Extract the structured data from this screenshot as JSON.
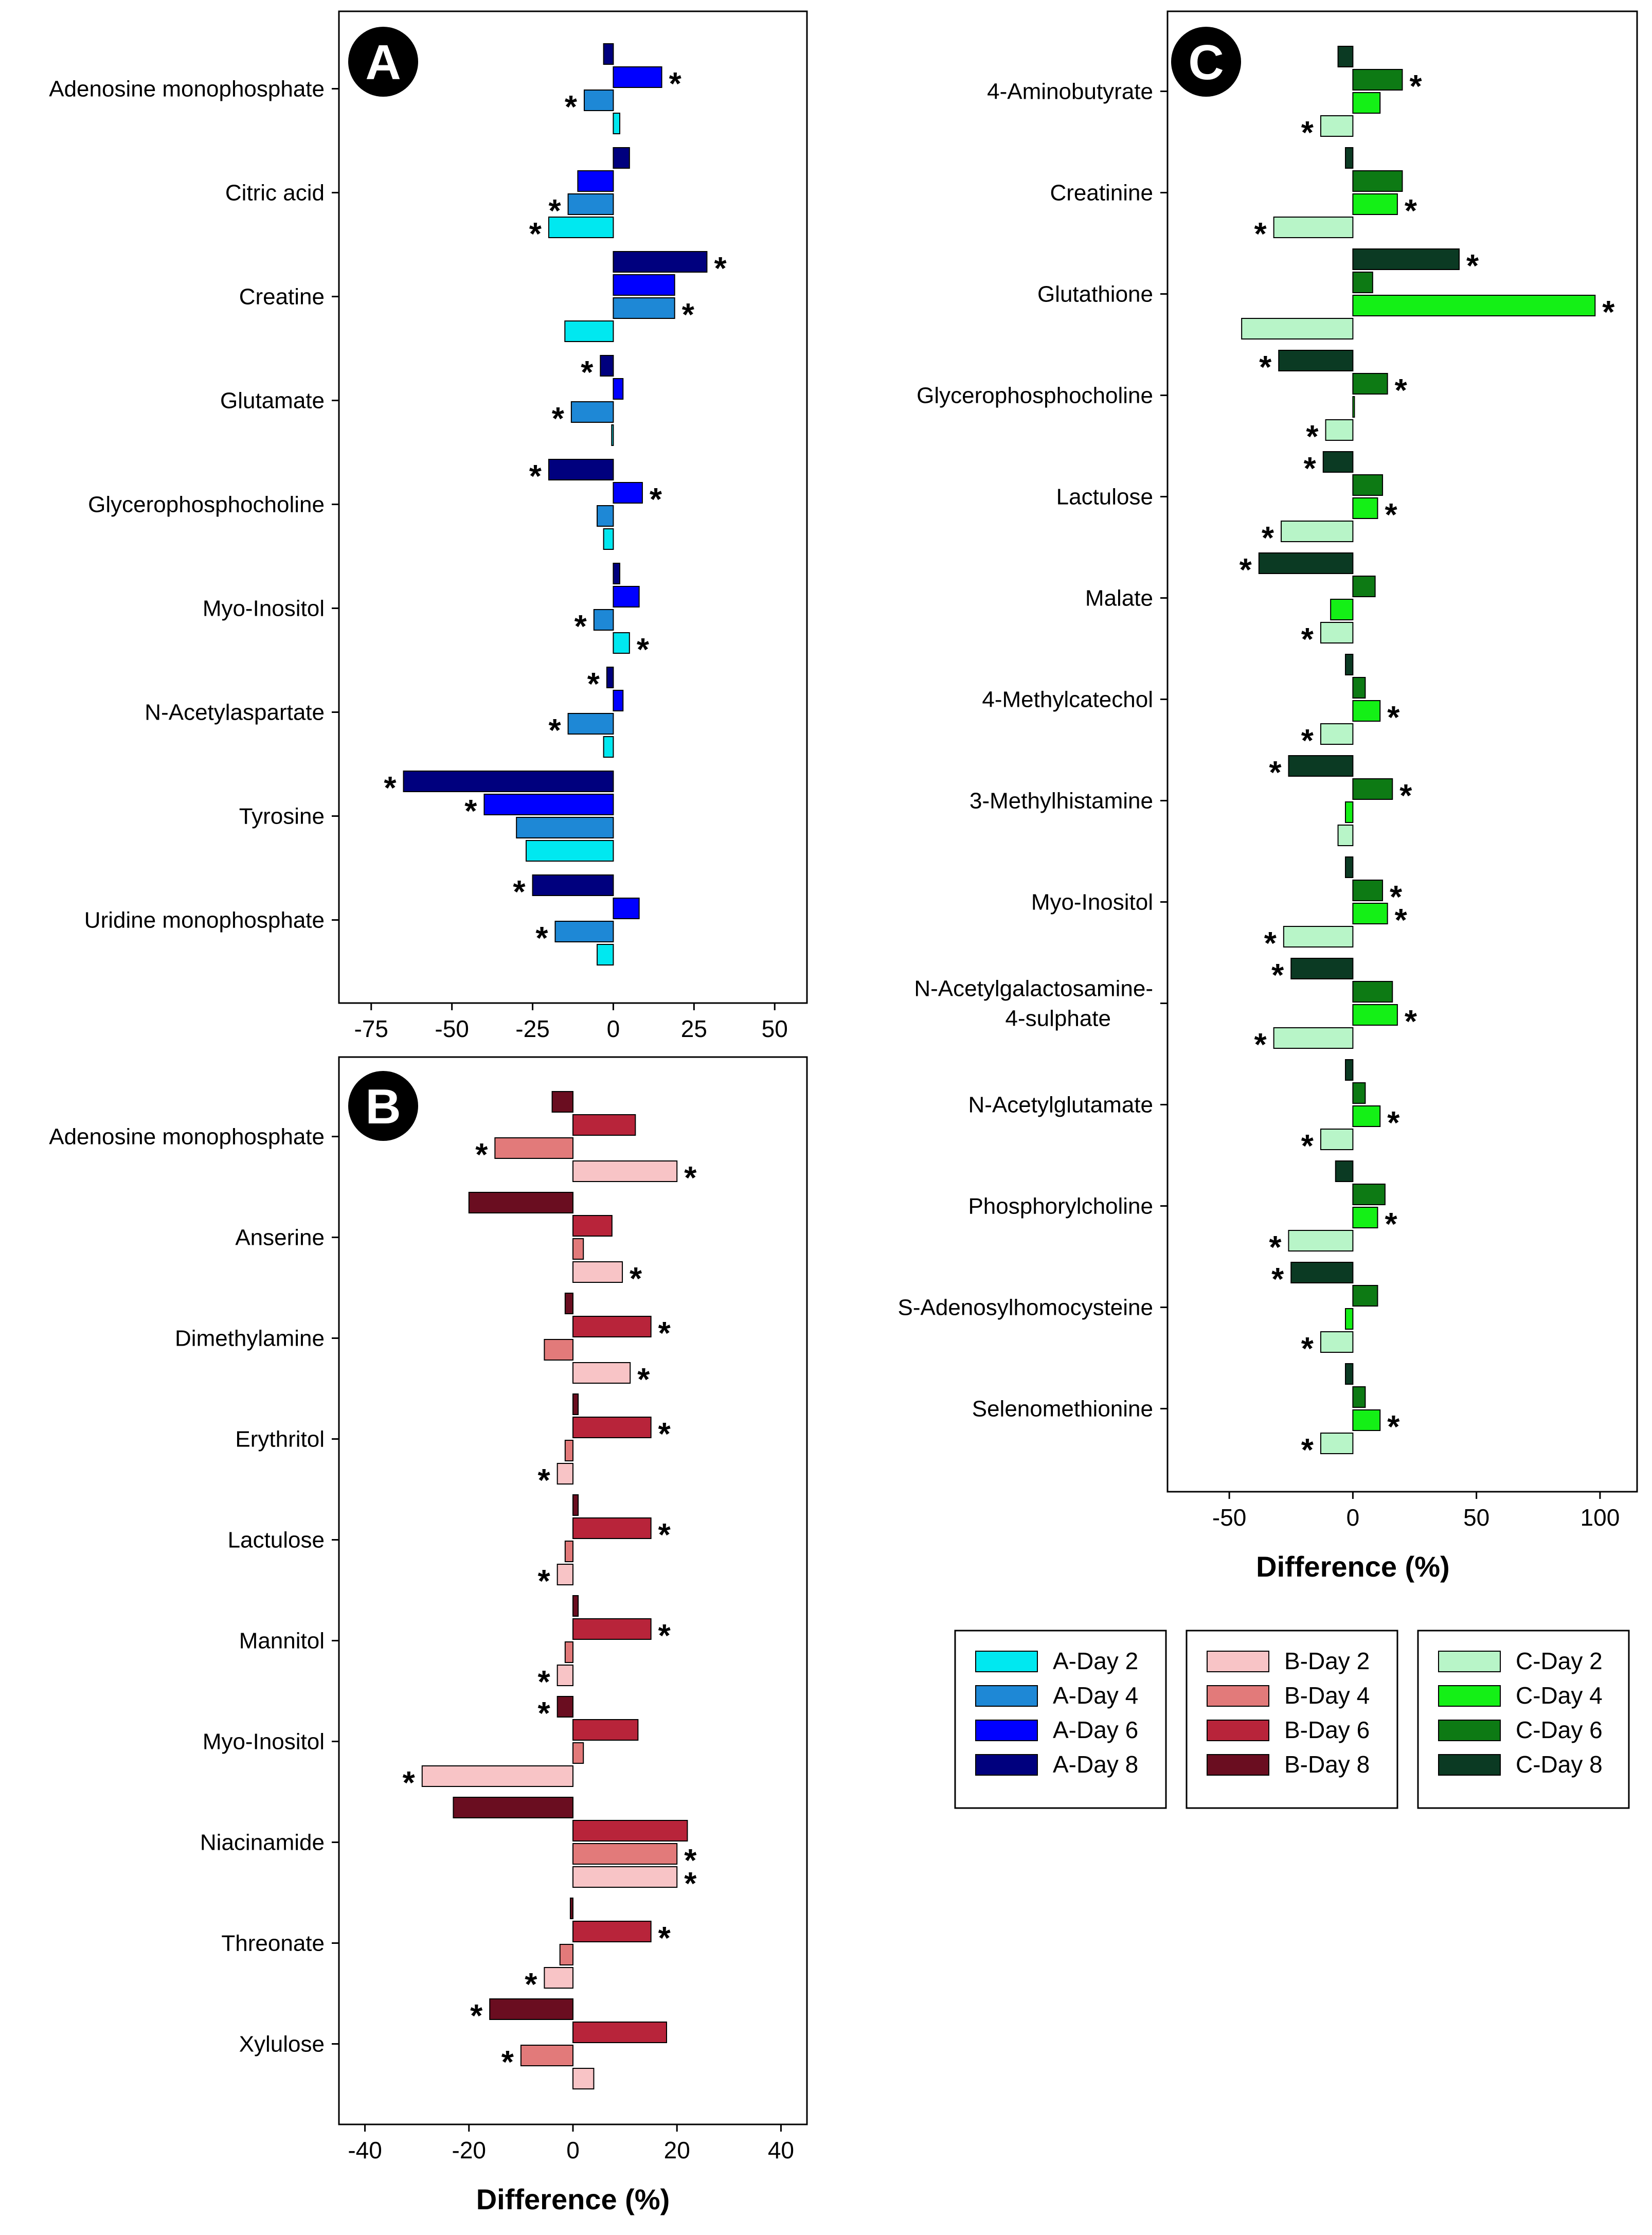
{
  "chart_data": [
    {
      "panel": "A",
      "type": "bar",
      "orientation": "horizontal",
      "xlabel": "",
      "xlim": [
        -85,
        60
      ],
      "xticks": [
        -75,
        -50,
        -25,
        0,
        25,
        50
      ],
      "categories": [
        "Adenosine monophosphate",
        "Citric acid",
        "Creatine",
        "Glutamate",
        "Glycerophosphocholine",
        "Myo-Inositol",
        "N-Acetylaspartate",
        "Tyrosine",
        "Uridine monophosphate"
      ],
      "series": [
        {
          "name": "A-Day 8",
          "color": "#00007e",
          "values": [
            -3,
            5,
            29,
            -4,
            -20,
            2,
            -2,
            -65,
            -25
          ],
          "significant": [
            false,
            false,
            true,
            true,
            true,
            false,
            true,
            true,
            true
          ]
        },
        {
          "name": "A-Day 6",
          "color": "#0000ff",
          "values": [
            15,
            -11,
            19,
            3,
            9,
            8,
            3,
            -40,
            8
          ],
          "significant": [
            true,
            false,
            false,
            false,
            true,
            false,
            false,
            true,
            false
          ]
        },
        {
          "name": "A-Day 4",
          "color": "#1e88d6",
          "values": [
            -9,
            -14,
            19,
            -13,
            -5,
            -6,
            -14,
            -30,
            -18
          ],
          "significant": [
            true,
            true,
            true,
            true,
            false,
            true,
            true,
            false,
            true
          ]
        },
        {
          "name": "A-Day 2",
          "color": "#00e8f0",
          "values": [
            2,
            -20,
            -15,
            -0.5,
            -3,
            5,
            -3,
            -27,
            -5
          ],
          "significant": [
            false,
            true,
            false,
            false,
            false,
            true,
            false,
            false,
            false
          ]
        }
      ]
    },
    {
      "panel": "B",
      "type": "bar",
      "orientation": "horizontal",
      "xlabel": "Difference (%)",
      "xlim": [
        -45,
        45
      ],
      "xticks": [
        -40,
        -20,
        0,
        20,
        40
      ],
      "categories": [
        "Adenosine monophosphate",
        "Anserine",
        "Dimethylamine",
        "Erythritol",
        "Lactulose",
        "Mannitol",
        "Myo-Inositol",
        "Niacinamide",
        "Threonate",
        "Xylulose"
      ],
      "series": [
        {
          "name": "B-Day 8",
          "color": "#6a0d20",
          "values": [
            -4,
            -20,
            -1.5,
            1,
            1,
            1,
            -3,
            -23,
            -0.5,
            -16
          ],
          "significant": [
            false,
            false,
            false,
            false,
            false,
            false,
            true,
            false,
            false,
            true
          ]
        },
        {
          "name": "B-Day 6",
          "color": "#b8243a",
          "values": [
            12,
            7.5,
            15,
            15,
            15,
            15,
            12.5,
            22,
            15,
            18
          ],
          "significant": [
            false,
            false,
            true,
            true,
            true,
            true,
            false,
            false,
            true,
            false
          ]
        },
        {
          "name": "B-Day 4",
          "color": "#e27a7a",
          "values": [
            -15,
            2,
            -5.5,
            -1.5,
            -1.5,
            -1.5,
            2,
            20,
            -2.5,
            -10
          ],
          "significant": [
            true,
            false,
            false,
            false,
            false,
            false,
            false,
            true,
            false,
            true
          ]
        },
        {
          "name": "B-Day 2",
          "color": "#f8c4c6",
          "values": [
            20,
            9.5,
            11,
            -3,
            -3,
            -3,
            -29,
            20,
            -5.5,
            4
          ],
          "significant": [
            true,
            true,
            true,
            true,
            true,
            true,
            true,
            true,
            true,
            false
          ]
        }
      ]
    },
    {
      "panel": "C",
      "type": "bar",
      "orientation": "horizontal",
      "xlabel": "Difference (%)",
      "xlim": [
        -75,
        115
      ],
      "xticks": [
        -50,
        0,
        50,
        100
      ],
      "categories": [
        "4-Aminobutyrate",
        "Creatinine",
        "Glutathione",
        "Glycerophosphocholine",
        "Lactulose",
        "Malate",
        "4-Methylcatechol",
        "3-Methylhistamine",
        "Myo-Inositol",
        "N-Acetylgalactosamine-4-sulphate",
        "N-Acetylglutamate",
        "Phosphorylcholine",
        "S-Adenosylhomocysteine",
        "Selenomethionine"
      ],
      "series": [
        {
          "name": "C-Day 8",
          "color": "#0b3a23",
          "values": [
            -6,
            -3,
            43,
            -30,
            -12,
            -38,
            -3,
            -26,
            -3,
            -25,
            -3,
            -7,
            -25,
            -3
          ],
          "significant": [
            false,
            false,
            true,
            true,
            true,
            true,
            false,
            true,
            false,
            true,
            false,
            false,
            true,
            false
          ]
        },
        {
          "name": "C-Day 6",
          "color": "#0d7a14",
          "values": [
            20,
            20,
            8,
            14,
            12,
            9,
            5,
            16,
            12,
            16,
            5,
            13,
            10,
            5
          ],
          "significant": [
            true,
            false,
            false,
            true,
            false,
            false,
            false,
            true,
            true,
            false,
            false,
            false,
            false,
            false
          ]
        },
        {
          "name": "C-Day 4",
          "color": "#14f016",
          "values": [
            11,
            18,
            98,
            0.5,
            10,
            -9,
            11,
            -3,
            14,
            18,
            11,
            10,
            -3,
            11
          ],
          "significant": [
            false,
            true,
            true,
            false,
            true,
            false,
            true,
            false,
            true,
            true,
            true,
            true,
            false,
            true
          ]
        },
        {
          "name": "C-Day 2",
          "color": "#b8f5c8",
          "values": [
            -13,
            -32,
            -45,
            -11,
            -29,
            -13,
            -13,
            -6,
            -28,
            -32,
            -13,
            -26,
            -13,
            -13
          ],
          "significant": [
            true,
            true,
            false,
            true,
            true,
            true,
            true,
            false,
            true,
            true,
            true,
            true,
            true,
            true
          ]
        }
      ]
    }
  ],
  "badges": {
    "A": "A",
    "B": "B",
    "C": "C"
  },
  "star_symbol": "*",
  "legends": [
    {
      "group": "A",
      "entries": [
        {
          "label": "A-Day 2",
          "color": "#00e8f0"
        },
        {
          "label": "A-Day 4",
          "color": "#1e88d6"
        },
        {
          "label": "A-Day 6",
          "color": "#0000ff"
        },
        {
          "label": "A-Day 8",
          "color": "#00007e"
        }
      ]
    },
    {
      "group": "B",
      "entries": [
        {
          "label": "B-Day 2",
          "color": "#f8c4c6"
        },
        {
          "label": "B-Day 4",
          "color": "#e27a7a"
        },
        {
          "label": "B-Day 6",
          "color": "#b8243a"
        },
        {
          "label": "B-Day 8",
          "color": "#6a0d20"
        }
      ]
    },
    {
      "group": "C",
      "entries": [
        {
          "label": "C-Day 2",
          "color": "#b8f5c8"
        },
        {
          "label": "C-Day 4",
          "color": "#14f016"
        },
        {
          "label": "C-Day 6",
          "color": "#0d7a14"
        },
        {
          "label": "C-Day 8",
          "color": "#0b3a23"
        }
      ]
    }
  ]
}
